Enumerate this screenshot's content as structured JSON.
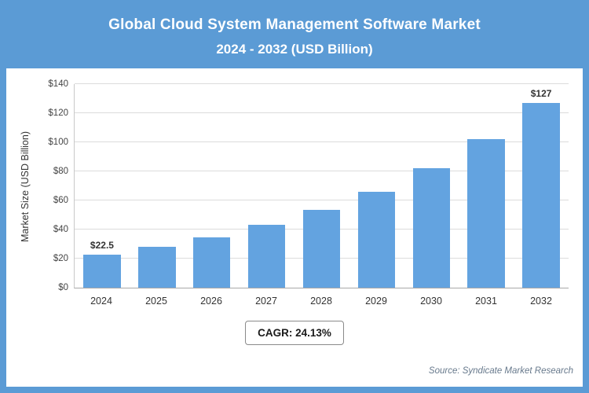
{
  "header": {
    "title_line1": "Global Cloud System Management Software Market",
    "title_line2": "2024 - 2032 (USD Billion)"
  },
  "chart_data": {
    "type": "bar",
    "title": "Global Cloud System Management Software Market 2024 - 2032 (USD Billion)",
    "categories": [
      "2024",
      "2025",
      "2026",
      "2027",
      "2028",
      "2029",
      "2030",
      "2031",
      "2032"
    ],
    "values": [
      22.5,
      28,
      34.5,
      43,
      53.5,
      66,
      82,
      102,
      127
    ],
    "point_labels": [
      "$22.5",
      "",
      "",
      "",
      "",
      "",
      "",
      "",
      "$127"
    ],
    "xlabel": "",
    "ylabel": "Market Size (USD Billion)",
    "ylim": [
      0,
      140
    ],
    "ytick_step": 20,
    "ytick_prefix": "$",
    "grid": "horizontal",
    "legend": "none",
    "bar_color": "#63a3e0"
  },
  "footer": {
    "cagr_label": "CAGR: 24.13%",
    "source": "Source: Syndicate Market Research"
  },
  "colors": {
    "frame": "#5b9bd5",
    "header_bg": "#5b9bd5",
    "header_text": "#ffffff",
    "bar": "#63a3e0",
    "gridline": "#dcdcdc"
  }
}
